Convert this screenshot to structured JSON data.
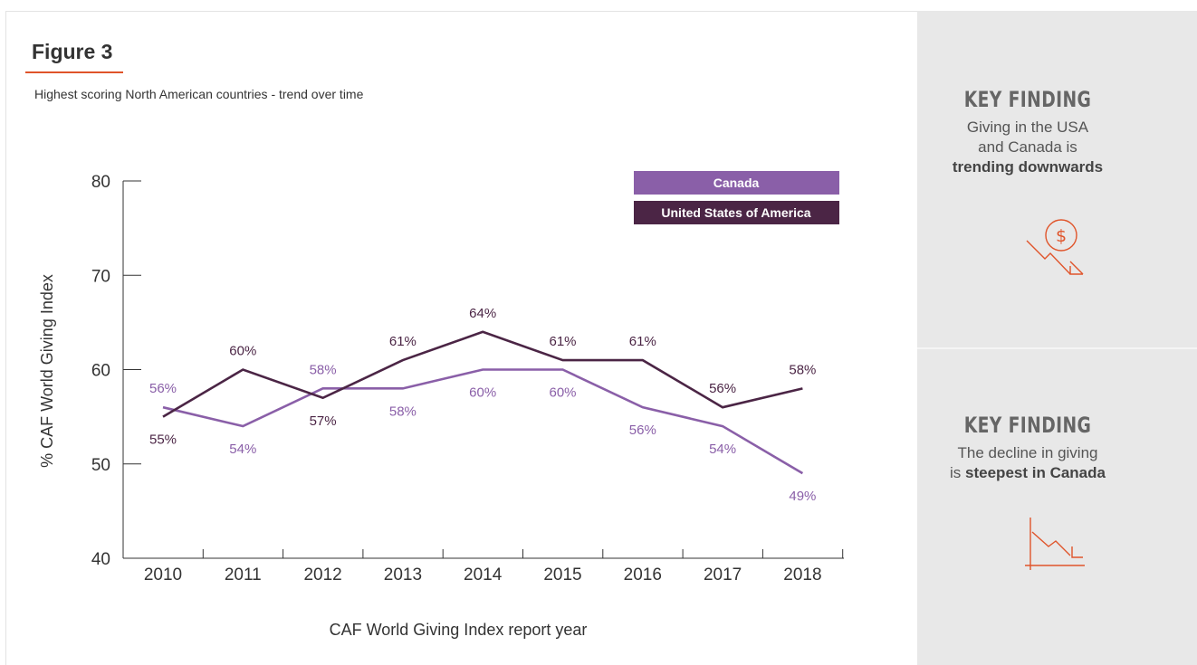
{
  "figure": {
    "title": "Figure 3",
    "subtitle": "Highest scoring North American countries - trend over time"
  },
  "chart_data": {
    "type": "line",
    "x": [
      "2010",
      "2011",
      "2012",
      "2013",
      "2014",
      "2015",
      "2016",
      "2017",
      "2018"
    ],
    "xlabel": "CAF World Giving Index report year",
    "ylabel": "% CAF World Giving Index",
    "ylim": [
      40,
      80
    ],
    "yticks": [
      40,
      50,
      60,
      70,
      80
    ],
    "grid": false,
    "legend_position": "top-right",
    "series": [
      {
        "name": "Canada",
        "color": "#8a5fa8",
        "values": [
          56,
          54,
          58,
          58,
          60,
          60,
          56,
          54,
          49
        ],
        "labels": [
          "56%",
          "54%",
          "58%",
          "58%",
          "60%",
          "60%",
          "56%",
          "54%",
          "49%"
        ]
      },
      {
        "name": "United States of America",
        "color": "#4b2545",
        "values": [
          55,
          60,
          57,
          61,
          64,
          61,
          61,
          56,
          58
        ],
        "labels": [
          "55%",
          "60%",
          "57%",
          "61%",
          "64%",
          "61%",
          "61%",
          "56%",
          "58%"
        ]
      }
    ]
  },
  "findings": [
    {
      "title": "KEY FINDING",
      "text_before": "Giving in the USA",
      "text_mid": "and Canada is",
      "text_bold": "trending downwards",
      "icon": "dollar-decline-icon",
      "color": "#e0542a"
    },
    {
      "title": "KEY FINDING",
      "text_before": "The decline in giving",
      "text_mid": "is",
      "text_bold": "steepest in Canada",
      "icon": "line-chart-decline-icon",
      "color": "#e0542a"
    }
  ]
}
